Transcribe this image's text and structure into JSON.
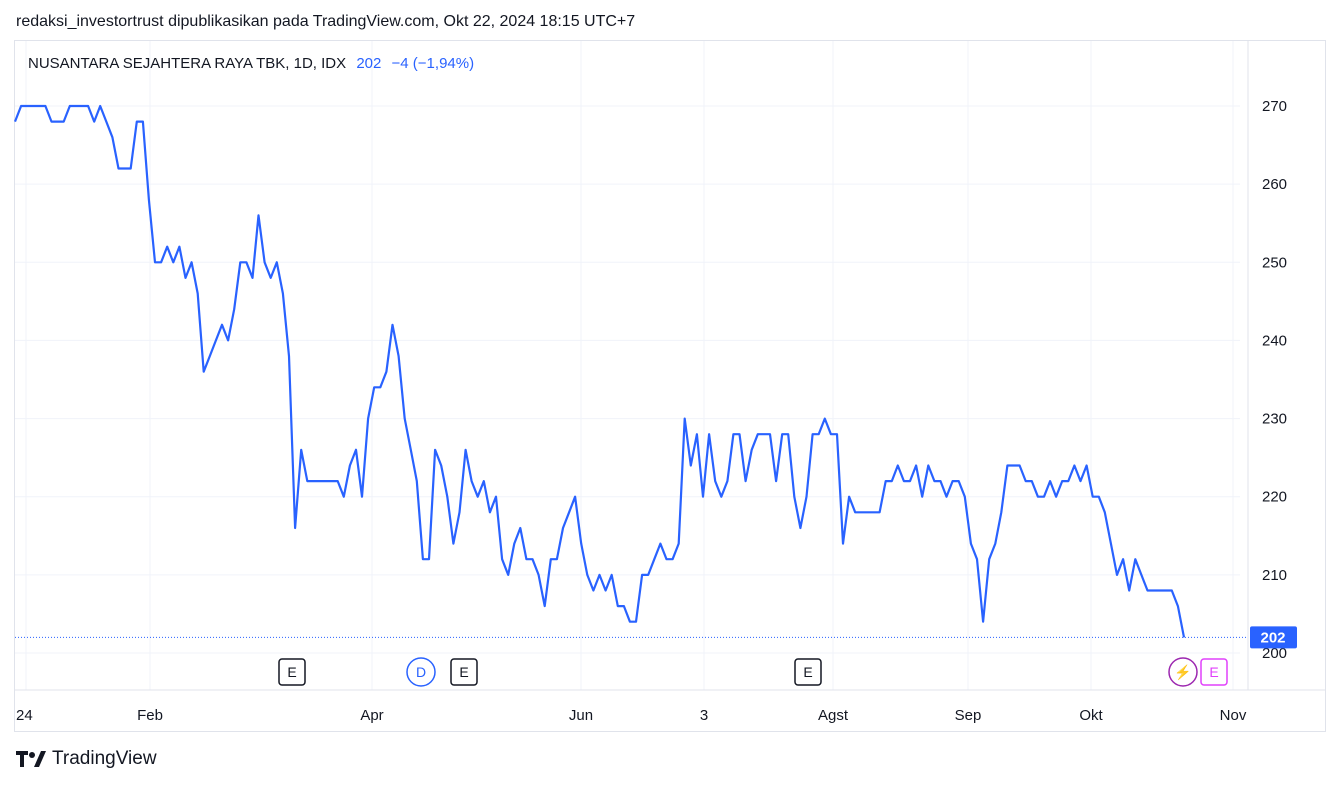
{
  "caption": "redaksi_investortrust dipublikasikan pada TradingView.com, Okt 22, 2024 18:15 UTC+7",
  "legend": {
    "symbol": "NUSANTARA SEJAHTERA RAYA TBK, 1D, IDX",
    "price": "202",
    "change": "−4 (−1,94%)"
  },
  "last_price_label": "202",
  "footer": {
    "brand": "TradingView",
    "logo_icon": "tradingview-logo-icon"
  },
  "colors": {
    "line": "#2962ff",
    "grid": "#f0f3fa",
    "event_dark": "#131722",
    "event_blue": "#2962ff",
    "event_purple": "#9c27b0",
    "event_pink": "#e040fb"
  },
  "chart_data": {
    "type": "line",
    "title": "NUSANTARA SEJAHTERA RAYA TBK, 1D, IDX",
    "xlabel": "",
    "ylabel": "",
    "ylim": [
      193,
      277
    ],
    "y_ticks": [
      200,
      210,
      220,
      230,
      240,
      250,
      260,
      270
    ],
    "x_ticks": [
      "24",
      "Feb",
      "Apr",
      "Jun",
      "3",
      "Agst",
      "Sep",
      "Okt",
      "Nov"
    ],
    "grid": true,
    "series": [
      {
        "values": [
          268,
          270,
          270,
          270,
          270,
          270,
          268,
          268,
          268,
          270,
          270,
          270,
          270,
          268,
          270,
          268,
          266,
          262,
          262,
          262,
          268,
          268,
          258,
          250,
          250,
          252,
          250,
          252,
          248,
          250,
          246,
          236,
          238,
          240,
          242,
          240,
          244,
          250,
          250,
          248,
          256,
          250,
          248,
          250,
          246,
          238,
          216,
          226,
          222,
          222,
          222,
          222,
          222,
          222,
          220,
          224,
          226,
          220,
          230,
          234,
          234,
          236,
          242,
          238,
          230,
          226,
          222,
          212,
          212,
          226,
          224,
          220,
          214,
          218,
          226,
          222,
          220,
          222,
          218,
          220,
          212,
          210,
          214,
          216,
          212,
          212,
          210,
          206,
          212,
          212,
          216,
          218,
          220,
          214,
          210,
          208,
          210,
          208,
          210,
          206,
          206,
          204,
          204,
          210,
          210,
          212,
          214,
          212,
          212,
          214,
          230,
          224,
          228,
          220,
          228,
          222,
          220,
          222,
          228,
          228,
          222,
          226,
          228,
          228,
          228,
          222,
          228,
          228,
          220,
          216,
          220,
          228,
          228,
          230,
          228,
          228,
          214,
          220,
          218,
          218,
          218,
          218,
          218,
          222,
          222,
          224,
          222,
          222,
          224,
          220,
          224,
          222,
          222,
          220,
          222,
          222,
          220,
          214,
          212,
          204,
          212,
          214,
          218,
          224,
          224,
          224,
          222,
          222,
          220,
          220,
          222,
          220,
          222,
          222,
          224,
          222,
          224,
          220,
          220,
          218,
          214,
          210,
          212,
          208,
          212,
          210,
          208,
          208,
          208,
          208,
          208,
          206,
          202
        ]
      }
    ],
    "events": [
      "E",
      "D",
      "E",
      "E",
      "⚡",
      "E"
    ]
  }
}
